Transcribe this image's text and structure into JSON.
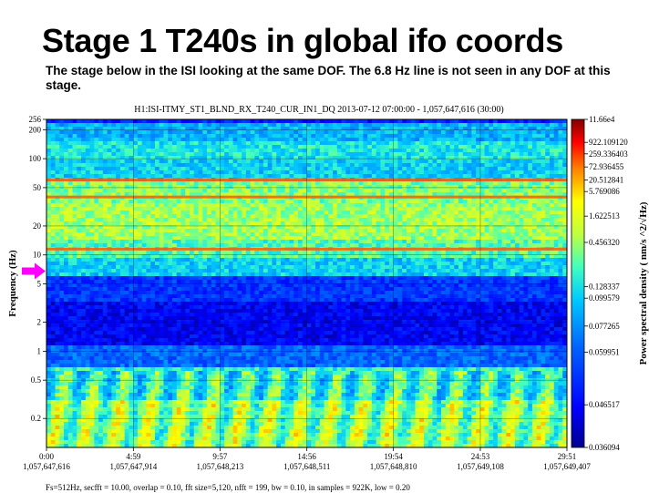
{
  "slide": {
    "title": "Stage 1 T240s in global ifo coords",
    "subtitle": "The stage below in the ISI looking at the same DOF. The 6.8 Hz line is not seen in any DOF at this stage."
  },
  "chart_data": {
    "type": "heatmap",
    "title": "H1:ISI-ITMY_ST1_BLND_RX_T240_CUR_IN1_DQ 2013-07-12 07:00:00 - 1,057,647,616 (30:00)",
    "ylabel": "Frequency (Hz)",
    "colorbar_label": "Power spectral density (  nm/s  ^2/√Hz)",
    "y_scale": "log",
    "ylim": [
      0.1,
      256
    ],
    "xlim": [
      0,
      1791
    ],
    "y_ticks": [
      {
        "value": 256,
        "label": "256"
      },
      {
        "value": 200,
        "label": "200"
      },
      {
        "value": 100,
        "label": "100"
      },
      {
        "value": 50,
        "label": "50"
      },
      {
        "value": 20,
        "label": "20"
      },
      {
        "value": 10,
        "label": "10"
      },
      {
        "value": 5,
        "label": "5"
      },
      {
        "value": 2,
        "label": "2"
      },
      {
        "value": 1,
        "label": "1"
      },
      {
        "value": 0.5,
        "label": "0.5"
      },
      {
        "value": 0.2,
        "label": "0.2"
      }
    ],
    "x_ticks": [
      {
        "value": 0,
        "label": "0:00",
        "gps": "1,057,647,616"
      },
      {
        "value": 299,
        "label": "4:59",
        "gps": "1,057,647,914"
      },
      {
        "value": 597,
        "label": "9:57",
        "gps": "1,057,648,213"
      },
      {
        "value": 896,
        "label": "14:56",
        "gps": "1,057,648,511"
      },
      {
        "value": 1194,
        "label": "19:54",
        "gps": "1,057,648,810"
      },
      {
        "value": 1493,
        "label": "24:53",
        "gps": "1,057,649,108"
      },
      {
        "value": 1791,
        "label": "29:51",
        "gps": "1,057,649,407"
      }
    ],
    "colorbar_ticks": [
      {
        "frac": 1.0,
        "label": "11.66e4"
      },
      {
        "frac": 0.93,
        "label": "922.109120"
      },
      {
        "frac": 0.895,
        "label": "259.336403"
      },
      {
        "frac": 0.855,
        "label": "72.936455"
      },
      {
        "frac": 0.815,
        "label": "20.512841"
      },
      {
        "frac": 0.78,
        "label": "5.769086"
      },
      {
        "frac": 0.705,
        "label": "1.622513"
      },
      {
        "frac": 0.625,
        "label": "0.456320"
      },
      {
        "frac": 0.49,
        "label": "0.128337"
      },
      {
        "frac": 0.455,
        "label": "0.099579"
      },
      {
        "frac": 0.37,
        "label": "0.077265"
      },
      {
        "frac": 0.29,
        "label": "0.059951"
      },
      {
        "frac": 0.13,
        "label": "0.046517"
      },
      {
        "frac": 0.0,
        "label": "0.036094"
      }
    ],
    "lines_hz": [
      11.5,
      40,
      60
    ],
    "marker": {
      "frequency_hz": 6.8,
      "color": "#ff00ff"
    },
    "grid": true
  },
  "footer": {
    "note": "Fs=512Hz, secfft = 10.00, overlap = 0.10, fft size=5,120, nfft = 199, bw = 0.10, in samples = 922K, low = 0.20"
  }
}
